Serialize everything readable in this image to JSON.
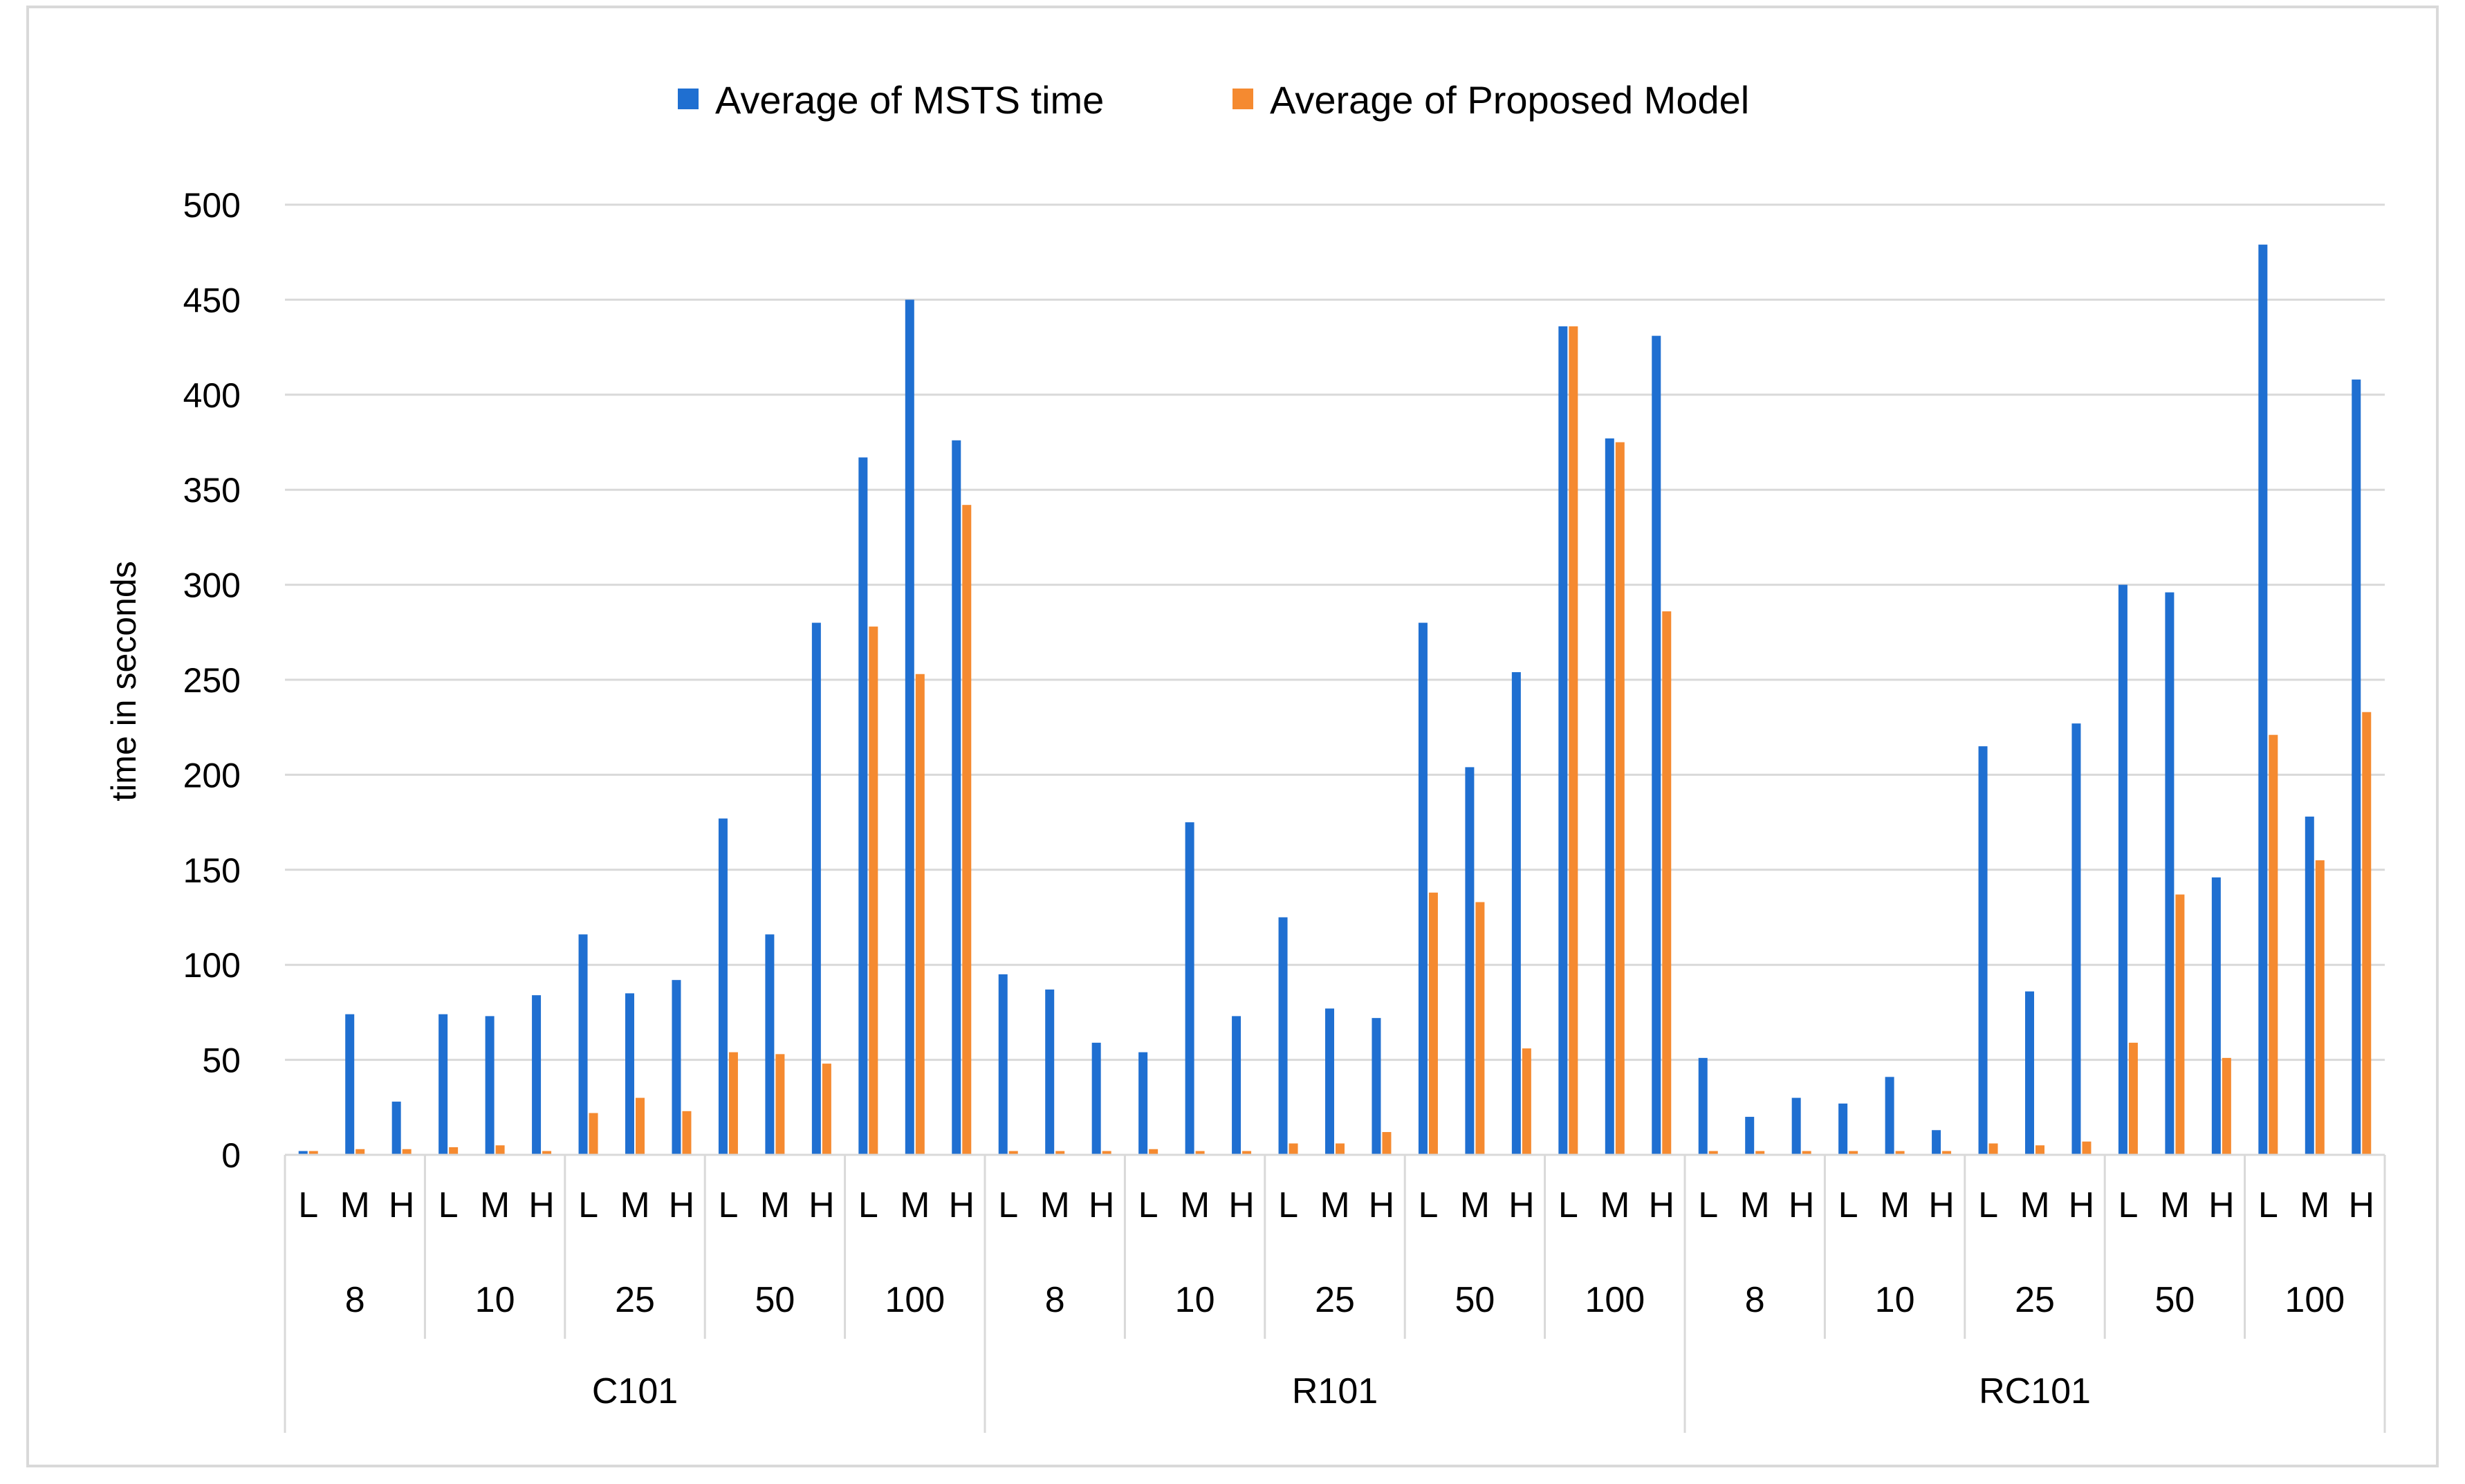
{
  "chart_data": {
    "type": "bar",
    "ylabel": "time in seconds",
    "ylim": [
      0,
      500
    ],
    "yticks": [
      0,
      50,
      100,
      150,
      200,
      250,
      300,
      350,
      400,
      450,
      500
    ],
    "grid": true,
    "legend_position": "top",
    "groups": [
      "C101",
      "R101",
      "RC101"
    ],
    "sizes": [
      "8",
      "10",
      "25",
      "50",
      "100"
    ],
    "levels": [
      "L",
      "M",
      "H"
    ],
    "series": [
      {
        "name": "Average of MSTS time",
        "color": "#1f6fd1",
        "values": [
          2,
          74,
          28,
          74,
          73,
          84,
          116,
          85,
          92,
          177,
          116,
          280,
          367,
          450,
          376,
          95,
          87,
          59,
          54,
          175,
          73,
          125,
          77,
          72,
          280,
          204,
          254,
          436,
          377,
          431,
          51,
          20,
          30,
          27,
          41,
          13,
          215,
          86,
          227,
          300,
          296,
          146,
          479,
          178,
          408
        ]
      },
      {
        "name": "Average of Proposed Model",
        "color": "#f58a30",
        "values": [
          2,
          3,
          3,
          4,
          5,
          2,
          22,
          30,
          23,
          54,
          53,
          48,
          278,
          253,
          342,
          2,
          2,
          2,
          3,
          2,
          2,
          6,
          6,
          12,
          138,
          133,
          56,
          436,
          375,
          286,
          2,
          2,
          2,
          2,
          2,
          2,
          6,
          5,
          7,
          59,
          137,
          51,
          221,
          155,
          233
        ]
      }
    ]
  }
}
